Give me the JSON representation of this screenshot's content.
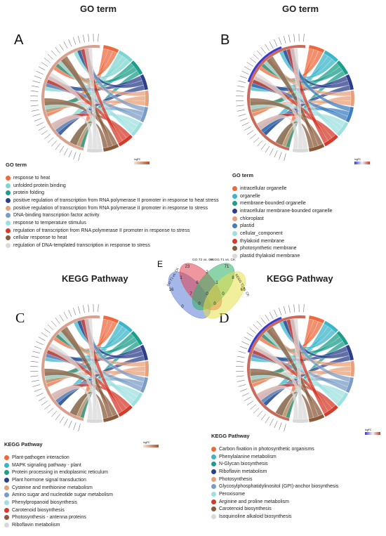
{
  "panels": [
    {
      "letter": "A",
      "title": "GO term",
      "legend_title": "GO term",
      "scale_label": "logFC",
      "items": [
        {
          "label": "response to heat",
          "color": "#ee6a3e"
        },
        {
          "label": "unfolded protein binding",
          "color": "#7dd6d0"
        },
        {
          "label": "protein folding",
          "color": "#1b9e8a"
        },
        {
          "label": "positive regulation of transcription from RNA polymerase II promoter in response to heat stress",
          "color": "#2c3f8c"
        },
        {
          "label": "positive regulation of transcription from RNA polymerase II promoter in response to stress",
          "color": "#e8a07a"
        },
        {
          "label": "DNA-binding transcription factor activity",
          "color": "#7a9cc7"
        },
        {
          "label": "response to temperature stimulus",
          "color": "#9ee0e0"
        },
        {
          "label": "regulation of transcription from RNA polymerase II promoter in response to stress",
          "color": "#d63a2a"
        },
        {
          "label": "cellular response to heat",
          "color": "#8a5a3a"
        },
        {
          "label": "regulation of DNA-templated transcription in response to stress",
          "color": "#d9d9d9"
        }
      ]
    },
    {
      "letter": "B",
      "title": "GO term",
      "legend_title": "GO term",
      "scale_label": "logFC",
      "items": [
        {
          "label": "intracellular organelle",
          "color": "#ee6a3e"
        },
        {
          "label": "organelle",
          "color": "#3bb5c9"
        },
        {
          "label": "membrane-bounded organelle",
          "color": "#1b9e8a"
        },
        {
          "label": "intracellular membrane-bounded organelle",
          "color": "#2c3f8c"
        },
        {
          "label": "chloroplast",
          "color": "#e8a07a"
        },
        {
          "label": "plastid",
          "color": "#3e7fc2"
        },
        {
          "label": "cellular_component",
          "color": "#9ee0e0"
        },
        {
          "label": "thylakoid membrane",
          "color": "#d63a2a"
        },
        {
          "label": "photosynthetic membrane",
          "color": "#8a5a3a"
        },
        {
          "label": "plastid thylakoid membrane",
          "color": "#d9d9d9"
        }
      ]
    },
    {
      "letter": "C",
      "title": "KEGG Pathway",
      "legend_title": "KEGG Pathway",
      "scale_label": "logFC",
      "items": [
        {
          "label": "Plant-pathogen interaction",
          "color": "#ee6a3e"
        },
        {
          "label": "MAPK signaling pathway - plant",
          "color": "#3bb5c9"
        },
        {
          "label": "Protein processing in endoplasmic reticulum",
          "color": "#1b9e8a"
        },
        {
          "label": "Plant hormone signal transduction",
          "color": "#2c3f8c"
        },
        {
          "label": "Cysteine and methionine metabolism",
          "color": "#e8a07a"
        },
        {
          "label": "Amino sugar and nucleotide sugar metabolism",
          "color": "#7a9cc7"
        },
        {
          "label": "Phenylpropanoid biosynthesis",
          "color": "#9ee0e0"
        },
        {
          "label": "Carotenoid biosynthesis",
          "color": "#d63a2a"
        },
        {
          "label": "Photosynthesis - antenna proteins",
          "color": "#8a5a3a"
        },
        {
          "label": "Riboflavin metabolism",
          "color": "#d9d9d9"
        }
      ]
    },
    {
      "letter": "D",
      "title": "KEGG Pathway",
      "legend_title": "KEGG Pathway",
      "scale_label": "logFC",
      "items": [
        {
          "label": "Carbon fixation in photosynthetic organisms",
          "color": "#ee6a3e"
        },
        {
          "label": "Phenylalanine metabolism",
          "color": "#3bb5c9"
        },
        {
          "label": "N-Glycan biosynthesis",
          "color": "#1b9e8a"
        },
        {
          "label": "Riboflavin metabolism",
          "color": "#2c3f8c"
        },
        {
          "label": "Photosynthesis",
          "color": "#e8a07a"
        },
        {
          "label": "Glycosylphosphatidylinositol (GPI)-anchor biosynthesis",
          "color": "#7a9cc7"
        },
        {
          "label": "Peroxisome",
          "color": "#9ee0e0"
        },
        {
          "label": "Arginine and proline metabolism",
          "color": "#d63a2a"
        },
        {
          "label": "Carotenoid biosynthesis",
          "color": "#8a5a3a"
        },
        {
          "label": "Isoquinoline alkaloid biosynthesis",
          "color": "#d9d9d9"
        }
      ]
    }
  ],
  "venn": {
    "letter": "E",
    "sets": [
      {
        "label": "GO T1 vs. CK",
        "color": "#5b7bd5"
      },
      {
        "label": "GO T2 vs. CK",
        "color": "#e0414e"
      },
      {
        "label": "KEGG T1 vs. CK",
        "color": "#2fae64"
      },
      {
        "label": "KEGG T2 vs. CK",
        "color": "#e5e04a"
      }
    ],
    "counts": {
      "only_go_t1": 16,
      "only_go_t2": 23,
      "only_kegg_t1": 71,
      "only_kegg_t2": 67,
      "go_t1_go_t2": 1,
      "go_t2_kegg_t1": 2,
      "kegg_t1_kegg_t2": 8,
      "go_t1_kegg_t2": 0,
      "go_t1_go_t2_kegg_t1": 6,
      "go_t2_kegg_t1_kegg_t2": 1,
      "go_t1_kegg_t1": 7,
      "go_t2_kegg_t2": 0,
      "all_four": 0,
      "go_t1_go_t2_kegg_t2": 0,
      "go_t1_kegg_t1_kegg_t2": 0
    }
  }
}
